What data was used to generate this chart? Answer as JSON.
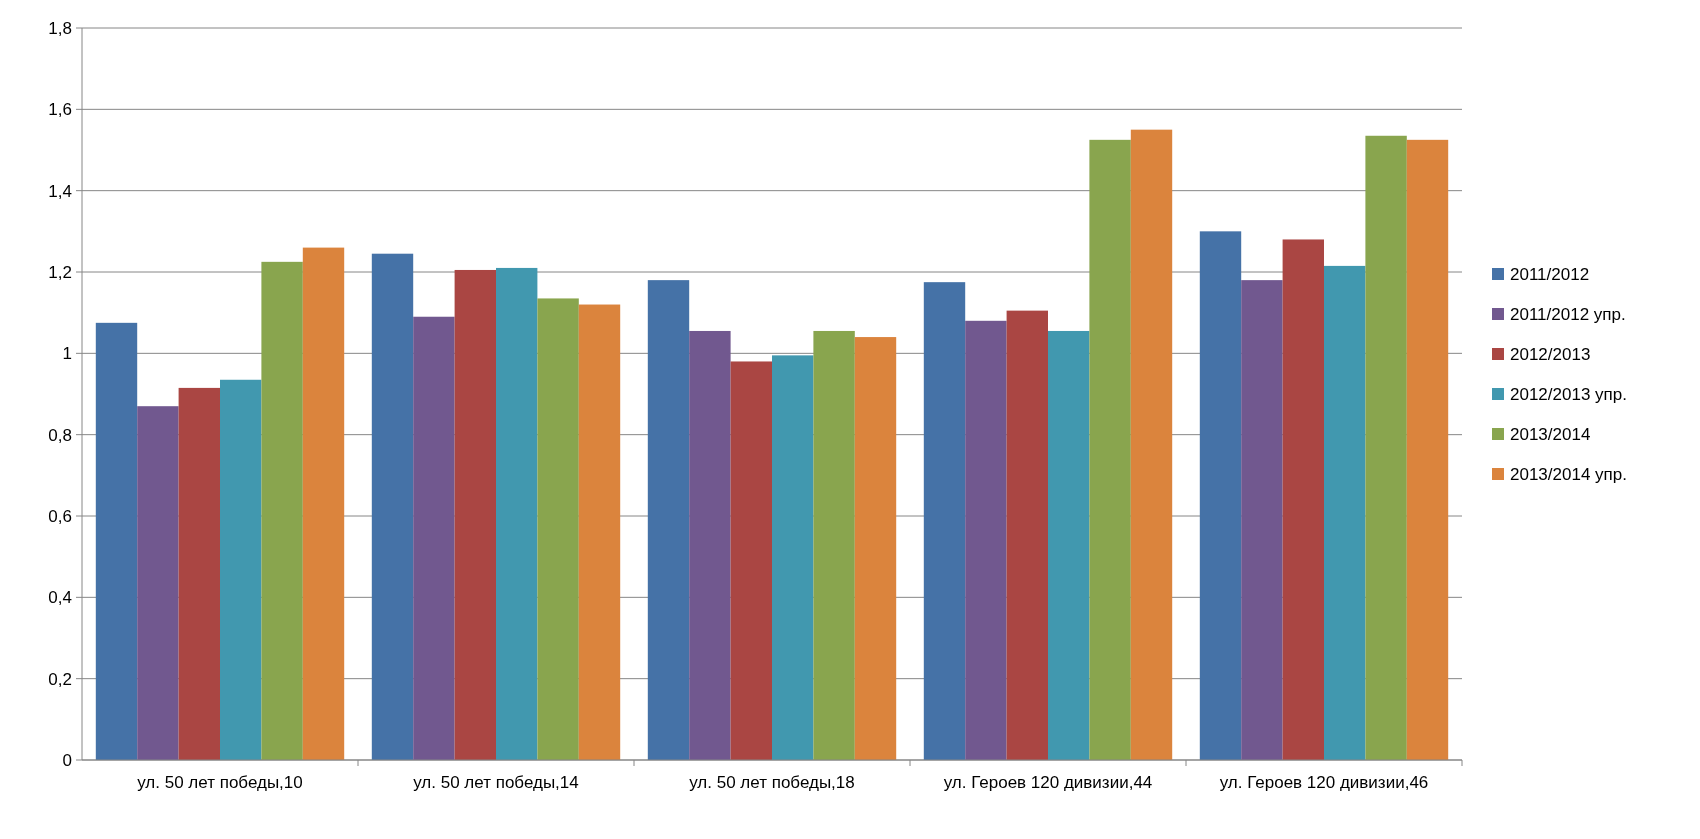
{
  "chart_data": {
    "type": "bar",
    "categories": [
      "ул. 50 лет победы,10",
      "ул. 50 лет победы,14",
      "ул. 50 лет победы,18",
      "ул. Героев 120 дивизии,44",
      "ул. Героев 120 дивизии,46"
    ],
    "series": [
      {
        "name": "2011/2012",
        "color": "#4572a7",
        "values": [
          1.075,
          1.245,
          1.18,
          1.175,
          1.3
        ]
      },
      {
        "name": "2011/2012 упр.",
        "color": "#71588f",
        "values": [
          0.87,
          1.09,
          1.055,
          1.08,
          1.18
        ]
      },
      {
        "name": "2012/2013",
        "color": "#aa4643",
        "values": [
          0.915,
          1.205,
          0.98,
          1.105,
          1.28
        ]
      },
      {
        "name": "2012/2013 упр.",
        "color": "#4198af",
        "values": [
          0.935,
          1.21,
          0.995,
          1.055,
          1.215
        ]
      },
      {
        "name": "2013/2014",
        "color": "#89a54e",
        "values": [
          1.225,
          1.135,
          1.055,
          1.525,
          1.535
        ]
      },
      {
        "name": "2013/2014 упр.",
        "color": "#db843d",
        "values": [
          1.26,
          1.12,
          1.04,
          1.55,
          1.525
        ]
      }
    ],
    "ylim": [
      0,
      1.8
    ],
    "yticks": [
      0,
      {
        "value": 0.2,
        "label": "0,2"
      },
      {
        "value": 0.4,
        "label": "0,4"
      },
      {
        "value": 0.6,
        "label": "0,6"
      },
      {
        "value": 0.8,
        "label": "0,8"
      },
      1,
      {
        "value": 1.2,
        "label": "1,2"
      },
      {
        "value": 1.4,
        "label": "1,4"
      },
      {
        "value": 1.6,
        "label": "1,6"
      },
      {
        "value": 1.8,
        "label": "1,8"
      }
    ],
    "grid": "y",
    "legend": "right"
  }
}
